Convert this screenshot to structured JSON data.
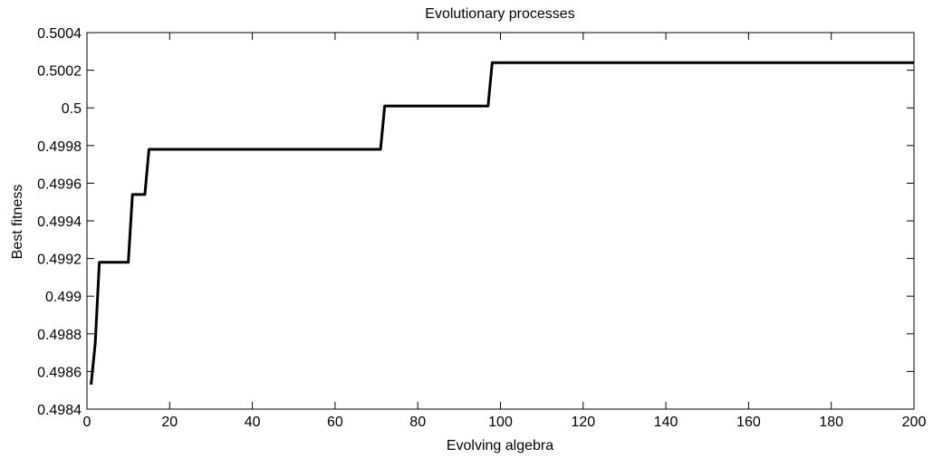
{
  "chart_data": {
    "type": "line",
    "title": "Evolutionary processes",
    "xlabel": "Evolving algebra",
    "ylabel": "Best fitness",
    "xlim": [
      0,
      200
    ],
    "ylim": [
      0.4984,
      0.5004
    ],
    "x_ticks": [
      0,
      20,
      40,
      60,
      80,
      100,
      120,
      140,
      160,
      180,
      200
    ],
    "x_tick_labels": [
      "0",
      "20",
      "40",
      "60",
      "80",
      "100",
      "120",
      "140",
      "160",
      "180",
      "200"
    ],
    "y_ticks": [
      0.4984,
      0.4986,
      0.4988,
      0.499,
      0.4992,
      0.4994,
      0.4996,
      0.4998,
      0.5,
      0.5002,
      0.5004
    ],
    "y_tick_labels": [
      "0.4984",
      "0.4986",
      "0.4988",
      "0.499",
      "0.4992",
      "0.4994",
      "0.4996",
      "0.4998",
      "0.5",
      "0.5002",
      "0.5004"
    ],
    "grid": false,
    "legend": "none",
    "series": [
      {
        "color": "#000000",
        "x": [
          1,
          2,
          3,
          10,
          11,
          14,
          15,
          71,
          72,
          97,
          98,
          200
        ],
        "y": [
          0.49853,
          0.49875,
          0.49918,
          0.49918,
          0.49954,
          0.49954,
          0.49978,
          0.49978,
          0.50001,
          0.50001,
          0.50024,
          0.50024
        ]
      }
    ]
  }
}
